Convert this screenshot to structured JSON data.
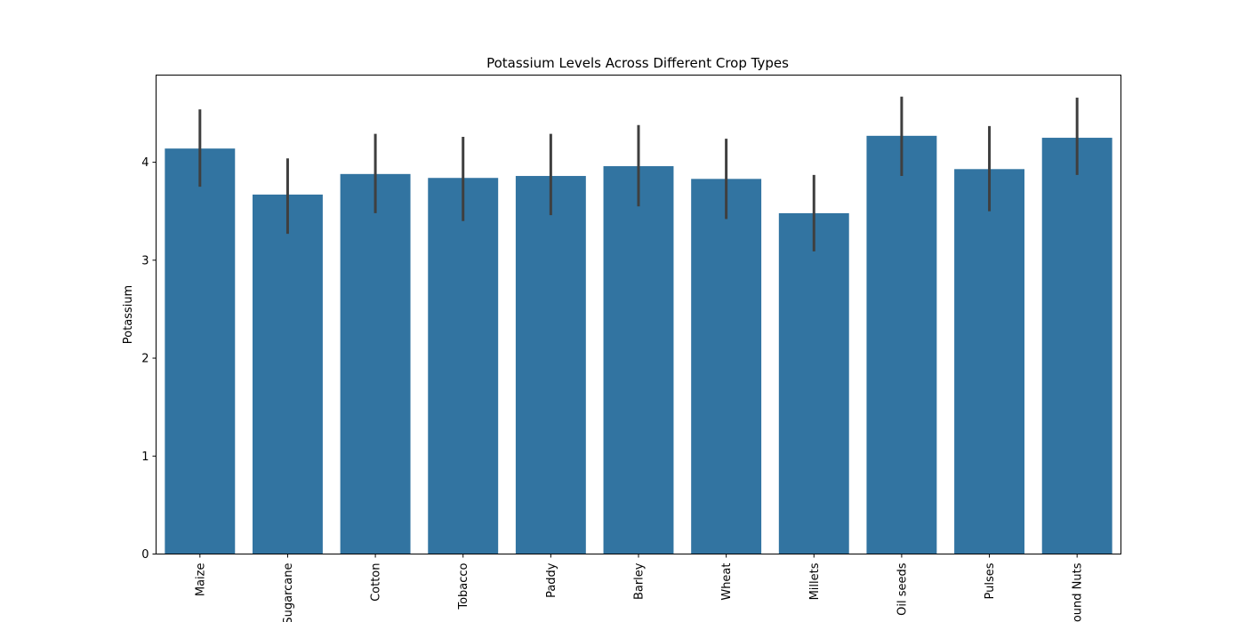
{
  "chart_data": {
    "type": "bar",
    "title": "Potassium Levels Across Different Crop Types",
    "xlabel": "",
    "ylabel": "Potassium",
    "categories": [
      "Maize",
      "Sugarcane",
      "Cotton",
      "Tobacco",
      "Paddy",
      "Barley",
      "Wheat",
      "Millets",
      "Oil seeds",
      "Pulses",
      "Ground Nuts"
    ],
    "values": [
      4.14,
      3.67,
      3.88,
      3.84,
      3.86,
      3.96,
      3.83,
      3.48,
      4.27,
      3.93,
      4.25
    ],
    "error_low": [
      3.75,
      3.27,
      3.48,
      3.4,
      3.46,
      3.55,
      3.42,
      3.09,
      3.86,
      3.5,
      3.87
    ],
    "error_high": [
      4.54,
      4.04,
      4.29,
      4.26,
      4.29,
      4.38,
      4.24,
      3.87,
      4.67,
      4.37,
      4.66
    ],
    "yticks": [
      0,
      1,
      2,
      3,
      4
    ],
    "ylim": [
      0,
      4.89
    ],
    "grid": false,
    "bar_color": "#3274a1",
    "error_color": "#3f3f3f"
  }
}
